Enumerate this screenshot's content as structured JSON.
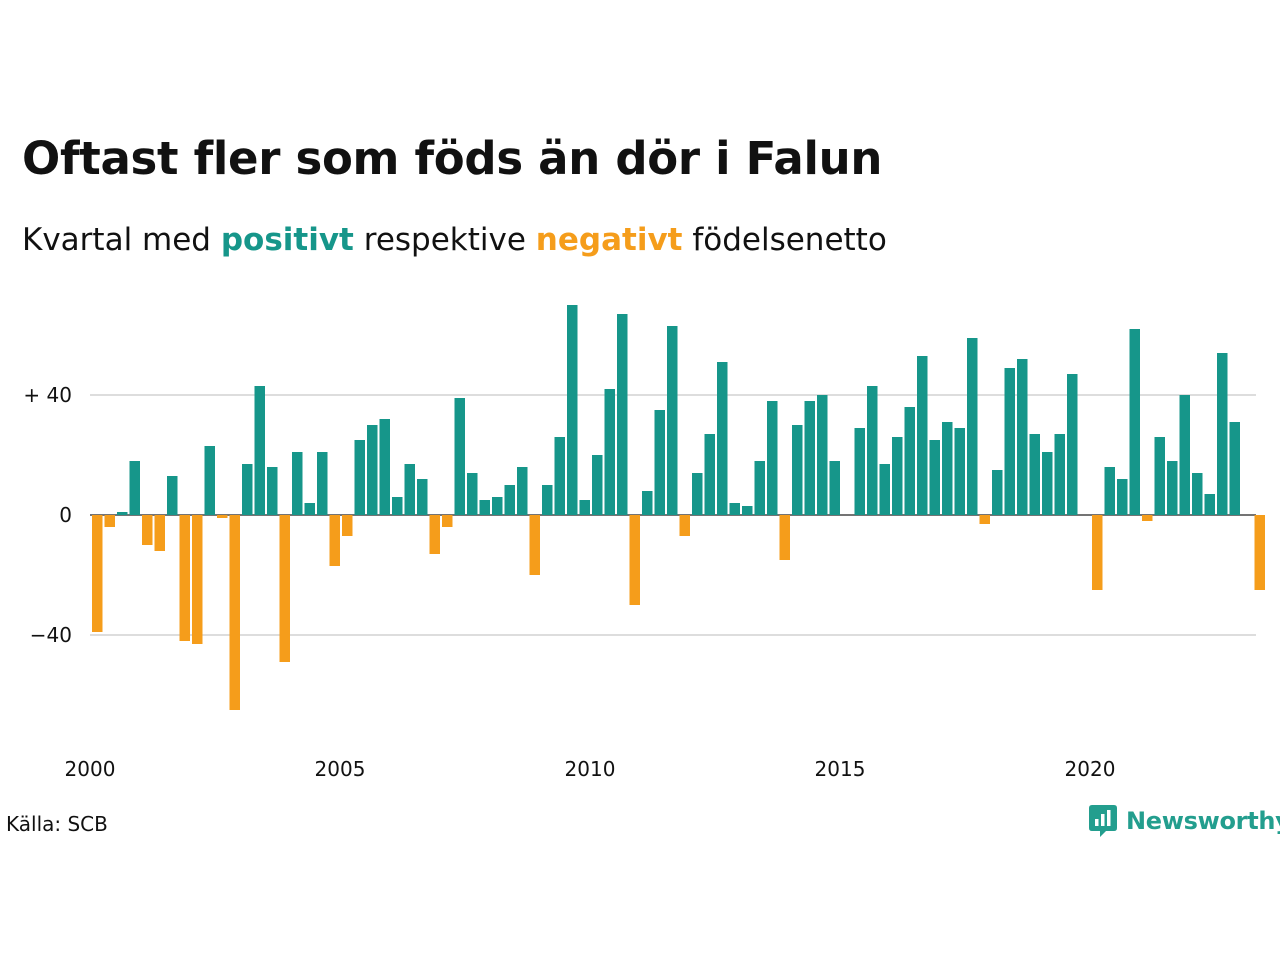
{
  "title": "Oftast fler som föds än dör i Falun",
  "subtitle": {
    "prefix": "Kvartal med",
    "positive_word": "positivt",
    "middle": "respektive",
    "negative_word": "negativt",
    "suffix": "födelsenetto"
  },
  "source": "Källa: SCB",
  "brand": "Newsworthy",
  "colors": {
    "positive": "#16968a",
    "negative": "#f59d1b",
    "gridline": "#dddddd",
    "text": "#111111",
    "brand": "#239e8e"
  },
  "chart_data": {
    "type": "bar",
    "x_start": "2000 Q1",
    "x_ticks": [
      2000,
      2005,
      2010,
      2015,
      2020
    ],
    "y_ticks": [
      {
        "value": 40,
        "label": "+ 40"
      },
      {
        "value": 0,
        "label": "0"
      },
      {
        "value": -40,
        "label": "−40"
      }
    ],
    "ylim": [
      -70,
      72
    ],
    "grid": true,
    "values": [
      -39,
      -4,
      1,
      18,
      -10,
      -12,
      13,
      -42,
      -43,
      23,
      -1,
      -65,
      17,
      43,
      16,
      -49,
      21,
      4,
      21,
      -17,
      -7,
      25,
      30,
      32,
      6,
      17,
      12,
      -13,
      -4,
      39,
      14,
      5,
      6,
      10,
      16,
      -20,
      10,
      26,
      70,
      5,
      20,
      42,
      67,
      -30,
      8,
      35,
      63,
      -7,
      14,
      27,
      51,
      4,
      3,
      18,
      38,
      -15,
      30,
      38,
      40,
      18,
      0,
      29,
      43,
      17,
      26,
      36,
      53,
      25,
      31,
      29,
      59,
      -3,
      15,
      49,
      52,
      27,
      21,
      27,
      47,
      0,
      -25,
      16,
      12,
      62,
      -2,
      26,
      18,
      40,
      14,
      7,
      54,
      31,
      0,
      -25
    ]
  }
}
